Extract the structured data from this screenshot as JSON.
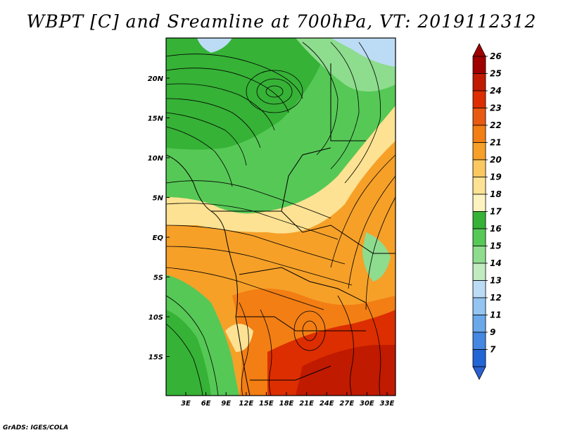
{
  "title": "WBPT [C] and Sreamline at 700hPa, VT: 2019112312",
  "footer": "GrADS: IGES/COLA",
  "map": {
    "x_ticks": [
      "3E",
      "6E",
      "9E",
      "12E",
      "15E",
      "18E",
      "21E",
      "24E",
      "27E",
      "30E",
      "33E"
    ],
    "y_ticks": [
      "20N",
      "15N",
      "10N",
      "5N",
      "EQ",
      "5S",
      "10S",
      "15S"
    ],
    "region": {
      "lon_min": 0,
      "lon_max": 35,
      "lat_min": -20,
      "lat_max": 25
    }
  },
  "colorbar": {
    "labels": [
      "26",
      "25",
      "24",
      "23",
      "22",
      "21",
      "20",
      "19",
      "18",
      "17",
      "16",
      "15",
      "14",
      "13",
      "12",
      "11",
      "9",
      "7"
    ],
    "colors": [
      "#a00000",
      "#c01a00",
      "#dc2e00",
      "#e85a10",
      "#f27e14",
      "#f6a028",
      "#fac860",
      "#fce292",
      "#fdf3c0",
      "#36b236",
      "#56c856",
      "#8edc8e",
      "#c0ecc0",
      "#bcdcf6",
      "#94c4f0",
      "#6aa8ea",
      "#4488e2",
      "#2266d6",
      "#2a60d0"
    ],
    "levels_note": ""
  },
  "colors": {
    "green_dark": "#36b236",
    "green_mid": "#56c856",
    "green_light": "#8edc8e",
    "yellow": "#fce292",
    "orange": "#f6a028",
    "orange_dark": "#f27e14",
    "red": "#dc2e00",
    "blue_light": "#bcdcf6"
  }
}
